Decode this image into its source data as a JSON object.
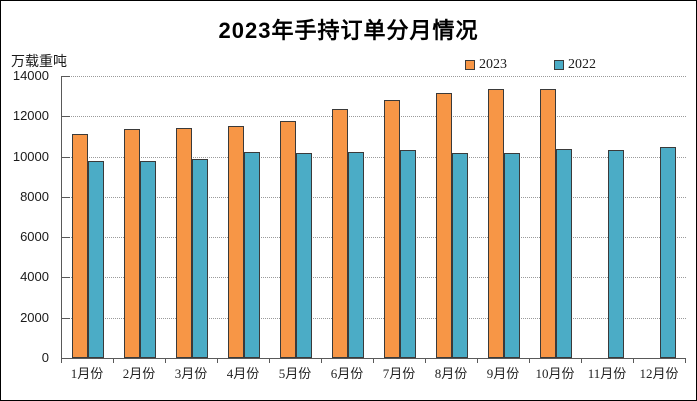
{
  "title": "2023年手持订单分月情况",
  "y_axis_unit": "万载重吨",
  "legend": {
    "items": [
      {
        "label": "2023",
        "color": "#F79646"
      },
      {
        "label": "2022",
        "color": "#4BACC6"
      }
    ]
  },
  "colors": {
    "bar_2023": "#F79646",
    "bar_2022": "#4BACC6",
    "bar_border": "#3A3A3A",
    "gridline": "#9A9A9A",
    "axis": "#595959",
    "title_text": "#000000"
  },
  "chart_data": {
    "type": "bar",
    "title": "2023年手持订单分月情况",
    "xlabel": "",
    "ylabel": "万载重吨",
    "categories": [
      "1月份",
      "2月份",
      "3月份",
      "4月份",
      "5月份",
      "6月份",
      "7月份",
      "8月份",
      "9月份",
      "10月份",
      "11月份",
      "12月份"
    ],
    "series": [
      {
        "name": "2023",
        "color": "#F79646",
        "values": [
          11100,
          11350,
          11400,
          11500,
          11750,
          12350,
          12800,
          13150,
          13350,
          13350,
          null,
          null
        ]
      },
      {
        "name": "2022",
        "color": "#4BACC6",
        "values": [
          9800,
          9800,
          9900,
          10250,
          10200,
          10250,
          10350,
          10200,
          10200,
          10400,
          10350,
          10500
        ]
      }
    ],
    "ylim": [
      0,
      14000
    ],
    "ytick_step": 2000,
    "y_tick_labels": [
      "0",
      "2000",
      "4000",
      "6000",
      "8000",
      "10000",
      "12000",
      "14000"
    ],
    "grid": "horizontal-dotted",
    "legend_position": "top-right-above-plot"
  }
}
